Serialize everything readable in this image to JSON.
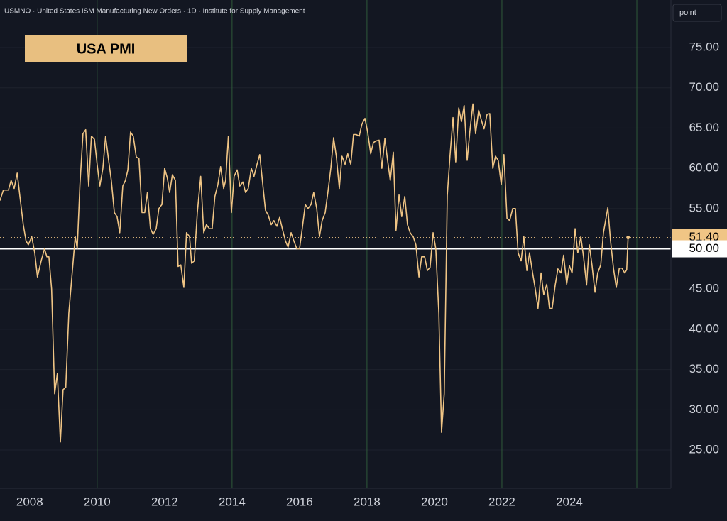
{
  "header": "USMNO · United States ISM Manufacturing New Orders · 1D · Institute for Supply Management",
  "button": "point",
  "chart_data": {
    "type": "line",
    "title": "USA PMI",
    "x": [
      2007.12,
      2007.22,
      2007.37,
      2007.45,
      2007.54,
      2007.63,
      2007.71,
      2007.81,
      2007.89,
      2007.96,
      2008.06,
      2008.15,
      2008.23,
      2008.34,
      2008.44,
      2008.51,
      2008.57,
      2008.65,
      2008.74,
      2008.82,
      2008.91,
      2008.99,
      2009.07,
      2009.16,
      2009.26,
      2009.35,
      2009.41,
      2009.49,
      2009.58,
      2009.66,
      2009.75,
      2009.83,
      2009.92,
      2010.0,
      2010.08,
      2010.17,
      2010.25,
      2010.34,
      2010.42,
      2010.51,
      2010.59,
      2010.67,
      2010.76,
      2010.84,
      2010.91,
      2010.99,
      2011.07,
      2011.16,
      2011.24,
      2011.33,
      2011.41,
      2011.49,
      2011.58,
      2011.66,
      2011.75,
      2011.83,
      2011.92,
      2012.0,
      2012.08,
      2012.15,
      2012.23,
      2012.32,
      2012.4,
      2012.48,
      2012.57,
      2012.65,
      2012.74,
      2012.8,
      2012.88,
      2012.97,
      2013.07,
      2013.16,
      2013.24,
      2013.33,
      2013.41,
      2013.49,
      2013.58,
      2013.66,
      2013.75,
      2013.81,
      2013.89,
      2013.98,
      2014.06,
      2014.15,
      2014.23,
      2014.32,
      2014.4,
      2014.48,
      2014.57,
      2014.65,
      2014.74,
      2014.82,
      2014.91,
      2014.99,
      2015.07,
      2015.16,
      2015.24,
      2015.33,
      2015.41,
      2015.49,
      2015.58,
      2015.66,
      2015.75,
      2015.83,
      2015.92,
      2016.0,
      2016.08,
      2016.17,
      2016.25,
      2016.34,
      2016.42,
      2016.51,
      2016.59,
      2016.67,
      2016.76,
      2016.84,
      2016.93,
      2017.01,
      2017.09,
      2017.18,
      2017.26,
      2017.35,
      2017.43,
      2017.52,
      2017.6,
      2017.68,
      2017.77,
      2017.85,
      2017.94,
      2018.02,
      2018.11,
      2018.19,
      2018.27,
      2018.36,
      2018.44,
      2018.53,
      2018.61,
      2018.69,
      2018.78,
      2018.86,
      2018.95,
      2019.03,
      2019.12,
      2019.2,
      2019.28,
      2019.37,
      2019.45,
      2019.54,
      2019.62,
      2019.71,
      2019.79,
      2019.87,
      2019.96,
      2020.04,
      2020.13,
      2020.21,
      2020.29,
      2020.38,
      2020.46,
      2020.55,
      2020.63,
      2020.72,
      2020.8,
      2020.88,
      2020.97,
      2021.05,
      2021.14,
      2021.22,
      2021.31,
      2021.39,
      2021.47,
      2021.56,
      2021.64,
      2021.73,
      2021.81,
      2021.89,
      2021.98,
      2022.06,
      2022.15,
      2022.23,
      2022.32,
      2022.4,
      2022.48,
      2022.57,
      2022.65,
      2022.74,
      2022.82,
      2022.91,
      2022.99,
      2023.07,
      2023.16,
      2023.24,
      2023.33,
      2023.41,
      2023.49,
      2023.58,
      2023.66,
      2023.75,
      2023.83,
      2023.92,
      2024.0,
      2024.08,
      2024.17,
      2024.25,
      2024.34,
      2024.42,
      2024.51,
      2024.59,
      2024.67,
      2024.76,
      2024.84,
      2024.93,
      2025.01,
      2025.14,
      2025.22,
      2025.31,
      2025.39,
      2025.48,
      2025.56,
      2025.64,
      2025.7,
      2025.74
    ],
    "series": [
      {
        "name": "USMNO",
        "color": "#f0c585",
        "values": [
          56,
          57.3,
          57.3,
          58.5,
          57.5,
          59.4,
          56.5,
          53,
          51,
          50.5,
          51.5,
          49.5,
          46.5,
          48.5,
          50,
          49,
          49,
          45,
          32,
          34.5,
          26,
          32.5,
          32.8,
          42,
          47,
          51.5,
          50,
          58,
          64.3,
          64.8,
          57.8,
          64,
          63.6,
          60.5,
          57.8,
          60,
          64,
          61,
          58.5,
          54.5,
          54,
          52,
          57.8,
          58.5,
          59.8,
          64.5,
          64,
          61.4,
          61.2,
          54.5,
          54.5,
          57,
          52.5,
          51.8,
          52.5,
          55,
          55.5,
          60,
          58.8,
          57,
          59.2,
          58.5,
          47.8,
          48,
          45.2,
          52,
          51.5,
          48.2,
          48.5,
          54.5,
          59,
          52,
          53,
          52.5,
          52.5,
          56.5,
          58,
          60.2,
          57.5,
          58.5,
          64,
          54.5,
          59,
          59.8,
          57.8,
          58.3,
          57,
          57.5,
          60,
          59,
          60.5,
          61.7,
          58,
          54.8,
          54.2,
          53,
          53.5,
          52.8,
          53.9,
          52.5,
          51,
          50.2,
          52,
          51,
          50,
          50,
          52.5,
          55.5,
          55,
          55.5,
          57,
          55,
          51.5,
          53.5,
          54.5,
          57,
          60.1,
          63.8,
          61.5,
          57.5,
          61.5,
          60.5,
          61.8,
          60.5,
          64.2,
          64.2,
          64,
          65.5,
          66.2,
          64.5,
          61.8,
          63.2,
          63.4,
          63.5,
          60,
          63.7,
          61,
          58.5,
          62,
          52.3,
          56.7,
          54,
          56.5,
          53,
          52,
          51.5,
          50.5,
          46.5,
          49,
          49,
          47.3,
          47.7,
          52,
          50,
          42,
          27.2,
          32,
          56.6,
          61.5,
          66.3,
          60.8,
          67.5,
          65.8,
          67.8,
          61,
          64.6,
          68,
          64.3,
          67.2,
          66,
          64.9,
          66.7,
          66.8,
          60,
          61.5,
          61,
          58,
          61.7,
          53.8,
          53.5,
          55,
          55,
          49.5,
          48.5,
          51.5,
          47.3,
          49.5,
          47,
          45,
          42.6,
          47,
          44.3,
          45.6,
          42.6,
          42.6,
          45.5,
          47.5,
          47,
          49.2,
          45.6,
          47.9,
          47,
          52.5,
          49.5,
          51.5,
          49,
          45.5,
          50.5,
          48,
          44.6,
          47,
          48,
          52,
          55.1,
          51,
          47.5,
          45.2,
          47.6,
          47.6,
          47,
          47.4,
          51.4
        ]
      }
    ],
    "xlim": [
      2007.12,
      2027.01
    ],
    "xticks": [
      2008,
      2010,
      2012,
      2014,
      2016,
      2018,
      2020,
      2022,
      2024
    ],
    "vertical_lines": [
      2010,
      2014,
      2018,
      2022,
      2026
    ],
    "ylim": [
      20.24,
      80.91
    ],
    "yticks": [
      {
        "value": 25,
        "label": "25.00"
      },
      {
        "value": 30,
        "label": "30.00"
      },
      {
        "value": 35,
        "label": "35.00"
      },
      {
        "value": 40,
        "label": "40.00"
      },
      {
        "value": 45,
        "label": "45.00"
      },
      {
        "value": 50,
        "label": "50.00"
      },
      {
        "value": 55,
        "label": "55.00"
      },
      {
        "value": 60,
        "label": "60.00"
      },
      {
        "value": 65,
        "label": "65.00"
      },
      {
        "value": 70,
        "label": "70.00"
      },
      {
        "value": 75,
        "label": "75.00"
      }
    ],
    "grid": true,
    "annotations": [
      {
        "value": 51.4,
        "label": "51.40",
        "color": "#f0c585"
      },
      {
        "value": 50,
        "label": "50.00",
        "color": "#ffffff"
      }
    ]
  }
}
